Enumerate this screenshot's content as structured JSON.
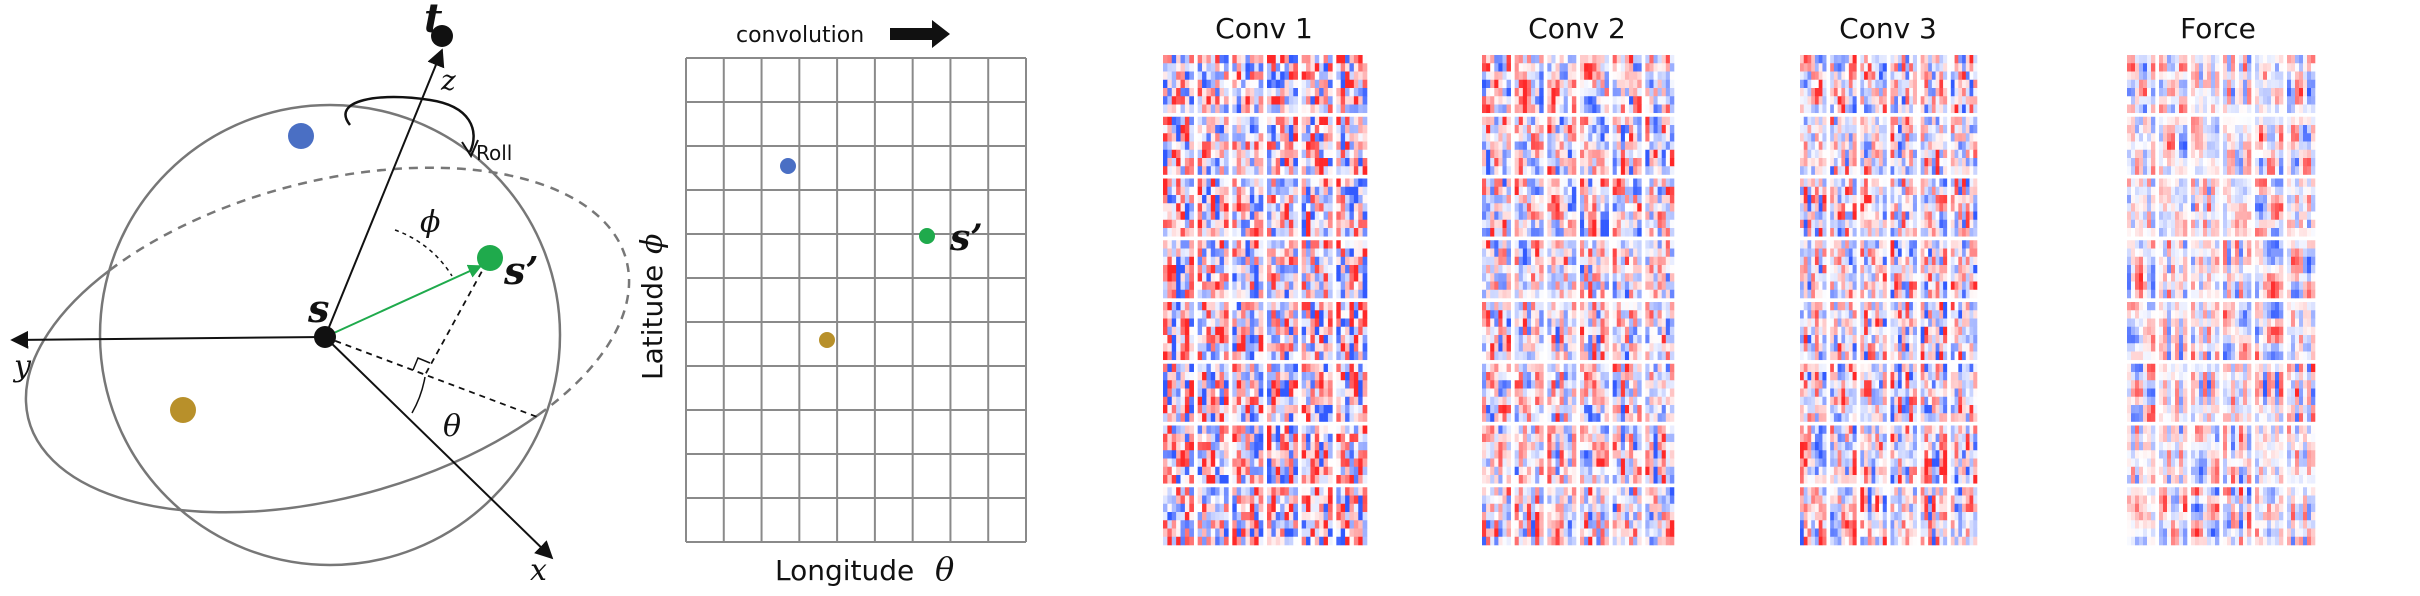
{
  "sphere": {
    "axis_z": "z",
    "axis_y": "y",
    "axis_x": "x",
    "point_t": "t",
    "point_s": "s",
    "point_s_prime": "s’",
    "angle_phi": "ϕ",
    "angle_theta": "θ",
    "roll_label": "Roll",
    "colors": {
      "blue": "#4a6fc4",
      "green": "#1faa4c",
      "gold": "#b8902a",
      "black": "#111111"
    }
  },
  "grid": {
    "convolution_label": "convolution",
    "ylabel": "Latitude",
    "ylabel_symbol": "ϕ",
    "xlabel": "Longitude",
    "xlabel_symbol": "θ",
    "point_label": "s’",
    "rows": 11,
    "cols": 9
  },
  "panels": [
    {
      "title": "Conv 1",
      "rows": 8,
      "cols": 6,
      "seed": 11,
      "smooth": 0
    },
    {
      "title": "Conv 2",
      "rows": 8,
      "cols": 6,
      "seed": 29,
      "smooth": 1
    },
    {
      "title": "Conv 3",
      "rows": 8,
      "cols": 6,
      "seed": 47,
      "smooth": 1
    },
    {
      "title": "Force",
      "rows": 8,
      "cols": 6,
      "seed": 83,
      "smooth": 2
    }
  ]
}
